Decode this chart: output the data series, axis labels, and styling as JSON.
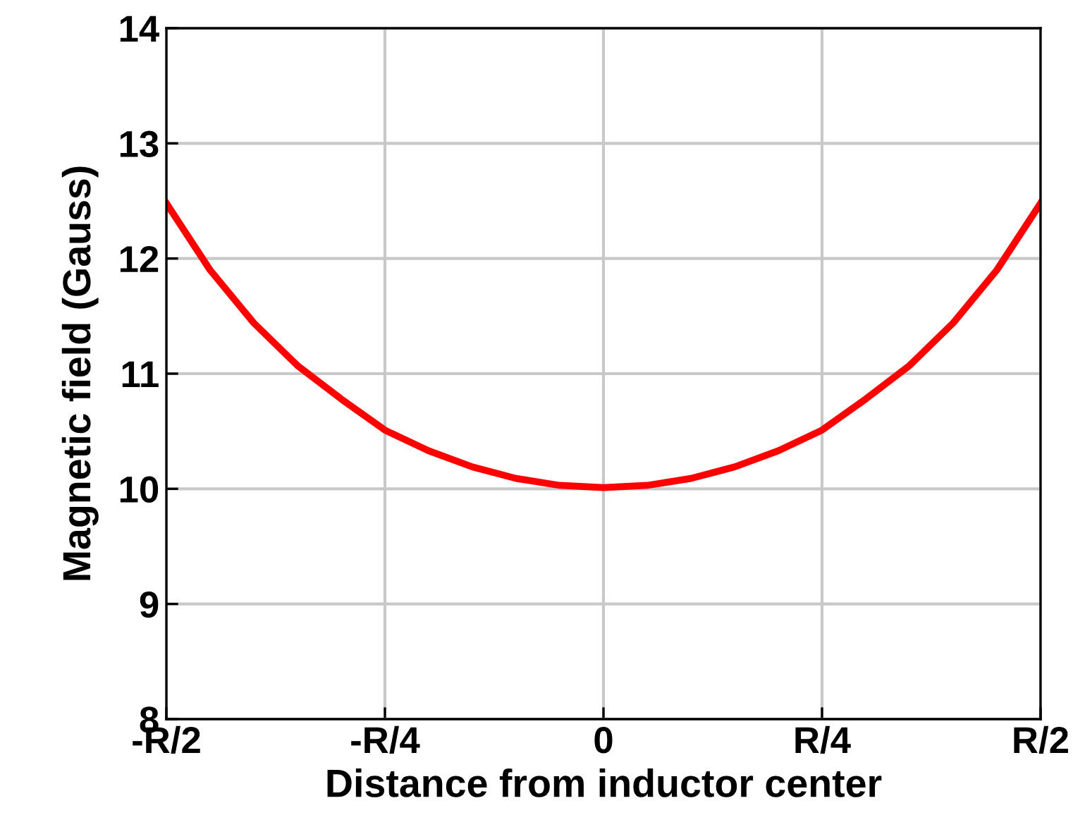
{
  "chart_data": {
    "type": "line",
    "xlabel": "Distance from inductor center",
    "ylabel": "Magnetic field (Gauss)",
    "categories": [
      "-R/2",
      null,
      null,
      null,
      null,
      "-R/4",
      null,
      null,
      null,
      null,
      "0",
      null,
      null,
      null,
      null,
      "R/4",
      null,
      null,
      null,
      null,
      "R/2"
    ],
    "series": [
      {
        "color": "#ff0000",
        "values": [
          12.48,
          11.9,
          11.44,
          11.07,
          10.78,
          10.51,
          10.33,
          10.19,
          10.09,
          10.03,
          10.01,
          10.03,
          10.09,
          10.19,
          10.33,
          10.51,
          10.78,
          11.07,
          11.44,
          11.9,
          12.48
        ]
      }
    ],
    "ylim": [
      8,
      14
    ],
    "yticks": [
      8,
      9,
      10,
      11,
      12,
      13,
      14
    ],
    "grid": true,
    "marker": "none",
    "line_style": "solid"
  }
}
